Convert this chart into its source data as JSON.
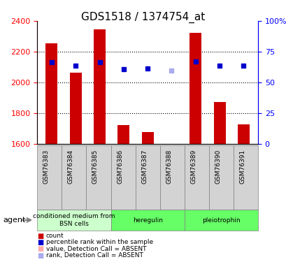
{
  "title": "GDS1518 / 1374754_at",
  "categories": [
    "GSM76383",
    "GSM76384",
    "GSM76385",
    "GSM76386",
    "GSM76387",
    "GSM76388",
    "GSM76389",
    "GSM76390",
    "GSM76391"
  ],
  "bar_values": [
    2257,
    2065,
    2345,
    1725,
    1680,
    1600,
    2325,
    1872,
    1728
  ],
  "bar_absent": [
    false,
    false,
    false,
    false,
    false,
    true,
    false,
    false,
    false
  ],
  "rank_values": [
    2130,
    2110,
    2130,
    2085,
    2090,
    2080,
    2135,
    2110,
    2108
  ],
  "rank_absent": [
    false,
    false,
    false,
    false,
    false,
    true,
    false,
    false,
    false
  ],
  "ylim_left": [
    1600,
    2400
  ],
  "ylim_right": [
    0,
    100
  ],
  "bar_color": "#cc0000",
  "bar_absent_color": "#ffaaaa",
  "rank_color": "#0000cc",
  "rank_absent_color": "#aaaaee",
  "groups": [
    {
      "label": "conditioned medium from\nBSN cells",
      "start": 0,
      "end": 3,
      "color": "#ccffcc"
    },
    {
      "label": "heregulin",
      "start": 3,
      "end": 6,
      "color": "#66ff66"
    },
    {
      "label": "pleiotrophin",
      "start": 6,
      "end": 9,
      "color": "#66ff66"
    }
  ],
  "agent_label": "agent",
  "legend_items": [
    {
      "color": "#cc0000",
      "label": "count"
    },
    {
      "color": "#0000cc",
      "label": "percentile rank within the sample"
    },
    {
      "color": "#ffaaaa",
      "label": "value, Detection Call = ABSENT"
    },
    {
      "color": "#aaaaee",
      "label": "rank, Detection Call = ABSENT"
    }
  ],
  "yticks_left": [
    1600,
    1800,
    2000,
    2200,
    2400
  ],
  "yticks_right": [
    0,
    25,
    50,
    75,
    100
  ],
  "ytick_labels_right": [
    "0",
    "25",
    "50",
    "75",
    "100%"
  ],
  "grid_color": "black",
  "grid_style": "dotted"
}
